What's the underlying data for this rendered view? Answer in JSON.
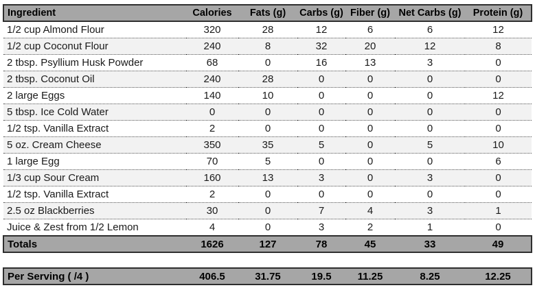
{
  "colors": {
    "header_bg": "#a6a6a6",
    "band_row_bg": "#f2f2f2",
    "solid_border": "#2e2e2e",
    "dotted_separator": "#4a4a4a",
    "text": "#1a1a1a"
  },
  "table": {
    "columns": [
      "Ingredient",
      "Calories",
      "Fats (g)",
      "Carbs (g)",
      "Fiber (g)",
      "Net Carbs (g)",
      "Protein (g)"
    ],
    "rows": [
      {
        "ingredient": "1/2 cup Almond Flour",
        "values": [
          320,
          28,
          12,
          6,
          6,
          12
        ]
      },
      {
        "ingredient": "1/2 cup Coconut Flour",
        "values": [
          240,
          8,
          32,
          20,
          12,
          8
        ]
      },
      {
        "ingredient": "2 tbsp. Psyllium Husk Powder",
        "values": [
          68,
          0,
          16,
          13,
          3,
          0
        ]
      },
      {
        "ingredient": "2 tbsp. Coconut Oil",
        "values": [
          240,
          28,
          0,
          0,
          0,
          0
        ]
      },
      {
        "ingredient": "2 large Eggs",
        "values": [
          140,
          10,
          0,
          0,
          0,
          12
        ]
      },
      {
        "ingredient": "5 tbsp. Ice Cold Water",
        "values": [
          0,
          0,
          0,
          0,
          0,
          0
        ]
      },
      {
        "ingredient": "1/2 tsp. Vanilla Extract",
        "values": [
          2,
          0,
          0,
          0,
          0,
          0
        ]
      },
      {
        "ingredient": "5 oz. Cream Cheese",
        "values": [
          350,
          35,
          5,
          0,
          5,
          10
        ]
      },
      {
        "ingredient": "1 large Egg",
        "values": [
          70,
          5,
          0,
          0,
          0,
          6
        ]
      },
      {
        "ingredient": "1/3 cup Sour Cream",
        "values": [
          160,
          13,
          3,
          0,
          3,
          0
        ]
      },
      {
        "ingredient": "1/2 tsp. Vanilla Extract",
        "values": [
          2,
          0,
          0,
          0,
          0,
          0
        ]
      },
      {
        "ingredient": "2.5 oz Blackberries",
        "values": [
          30,
          0,
          7,
          4,
          3,
          1
        ]
      },
      {
        "ingredient": "Juice & Zest from 1/2 Lemon",
        "values": [
          4,
          0,
          3,
          2,
          1,
          0
        ]
      }
    ],
    "totals": {
      "label": "Totals",
      "values": [
        1626,
        127,
        78,
        45,
        33,
        49
      ]
    },
    "per_serving": {
      "label": "Per Serving ( /4 )",
      "values": [
        406.5,
        31.75,
        19.5,
        11.25,
        8.25,
        12.25
      ]
    }
  }
}
